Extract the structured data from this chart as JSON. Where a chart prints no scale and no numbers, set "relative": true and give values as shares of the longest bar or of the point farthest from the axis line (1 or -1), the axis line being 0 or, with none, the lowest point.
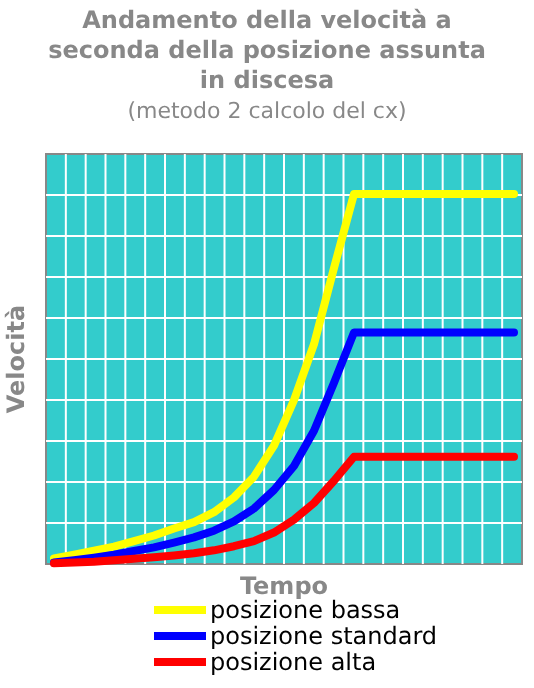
{
  "chart_data": {
    "type": "line",
    "title": "Andamento della velocità a seconda della posizione assunta in discesa",
    "subtitle": "(metodo 2 calcolo del cx)",
    "xlabel": "Tempo",
    "ylabel": "Velocità",
    "relative": true,
    "grid": true,
    "legend": "bottom",
    "categories": [
      null,
      null,
      null,
      null,
      null,
      null,
      null,
      null,
      null,
      null,
      null,
      null,
      null,
      null,
      null,
      null,
      null,
      null,
      null,
      null,
      null,
      null,
      null,
      null
    ],
    "series": [
      {
        "name": "posizione bassa",
        "color": "#ffff00",
        "values": [
          0.015,
          0.025,
          0.036,
          0.047,
          0.062,
          0.077,
          0.096,
          0.113,
          0.14,
          0.18,
          0.236,
          0.32,
          0.443,
          0.594,
          0.8,
          1,
          1,
          1,
          1,
          1,
          1,
          1,
          1,
          1
        ]
      },
      {
        "name": "posizione standard",
        "color": "#0000ff",
        "values": [
          0.004,
          0.01,
          0.017,
          0.025,
          0.035,
          0.045,
          0.058,
          0.072,
          0.09,
          0.115,
          0.15,
          0.2,
          0.265,
          0.36,
          0.49,
          0.626,
          0.626,
          0.626,
          0.626,
          0.626,
          0.626,
          0.626,
          0.626,
          0.626
        ]
      },
      {
        "name": "posizione alta",
        "color": "#ff0000",
        "values": [
          0.002,
          0.004,
          0.006,
          0.01,
          0.014,
          0.018,
          0.023,
          0.029,
          0.037,
          0.048,
          0.062,
          0.085,
          0.12,
          0.165,
          0.225,
          0.29,
          0.29,
          0.29,
          0.29,
          0.29,
          0.29,
          0.29,
          0.29,
          0.29
        ]
      }
    ]
  }
}
